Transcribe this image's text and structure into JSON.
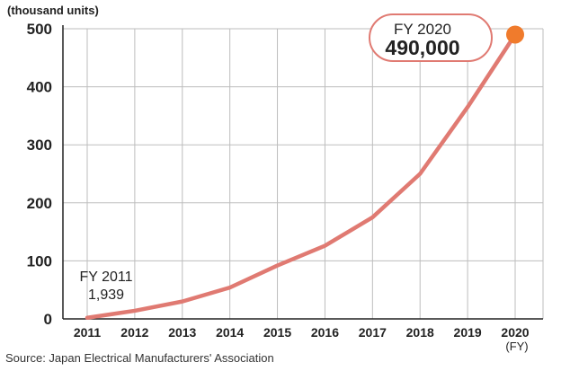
{
  "chart_data": {
    "type": "line",
    "unit_label": "(thousand units)",
    "x": [
      "2011",
      "2012",
      "2013",
      "2014",
      "2015",
      "2016",
      "2017",
      "2018",
      "2019",
      "2020"
    ],
    "x_unit": "(FY)",
    "series": [
      {
        "values": [
          1.939,
          14,
          30,
          54,
          92,
          126,
          175,
          250,
          365,
          490
        ],
        "color": "#e07a72"
      }
    ],
    "ylim": [
      0,
      500
    ],
    "yticks": [
      0,
      100,
      200,
      300,
      400,
      500
    ],
    "grid": true,
    "annotations": {
      "start": {
        "line1": "FY 2011",
        "line2": "1,939"
      },
      "end": {
        "line1": "FY 2020",
        "line2": "490,000"
      }
    },
    "highlight_color": "#f07b2c",
    "source": "Source: Japan Electrical Manufacturers' Association"
  }
}
